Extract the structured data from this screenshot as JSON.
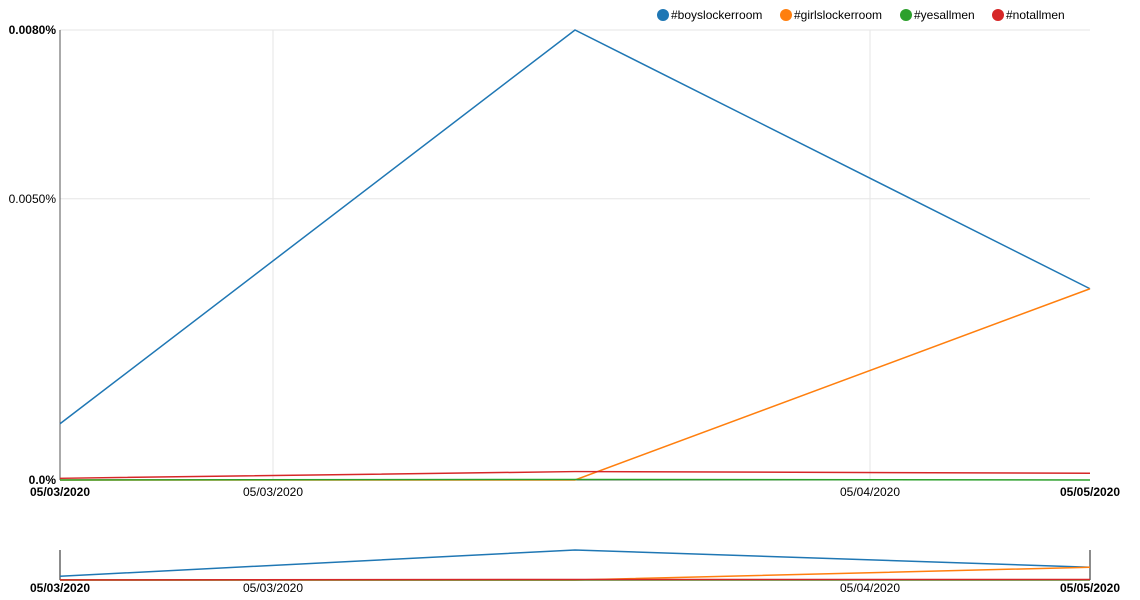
{
  "chart_data": {
    "type": "line",
    "x": [
      "05/03/2020",
      "05/04/2020",
      "05/05/2020"
    ],
    "series": [
      {
        "name": "#boyslockerroom",
        "color": "#1f77b4",
        "values": [
          0.001,
          0.008,
          0.0034
        ]
      },
      {
        "name": "#girlslockerroom",
        "color": "#ff7f0e",
        "values": [
          0.0,
          0.0,
          0.0034
        ]
      },
      {
        "name": "#yesallmen",
        "color": "#2ca02c",
        "values": [
          0.0,
          1e-05,
          0.0
        ]
      },
      {
        "name": "#notallmen",
        "color": "#d62728",
        "values": [
          3e-05,
          0.00015,
          0.00012
        ]
      }
    ],
    "yticks": [
      {
        "value": 0.0,
        "label": "0.0%"
      },
      {
        "value": 0.005,
        "label": "0.0050%"
      },
      {
        "value": 0.008,
        "label": "0.0080%"
      }
    ],
    "xticks": [
      "05/03/2020",
      "05/03/2020",
      "05/04/2020",
      "05/05/2020"
    ],
    "context_xticks": [
      "05/03/2020",
      "05/03/2020",
      "05/04/2020",
      "05/05/2020"
    ],
    "ylim": [
      0,
      0.008
    ],
    "legend_position": "top-right",
    "grid": true
  }
}
